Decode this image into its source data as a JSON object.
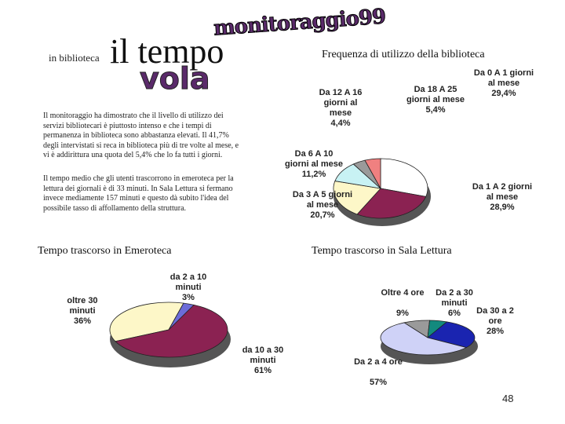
{
  "header": {
    "logo": "monitoraggio99",
    "kicker": "in biblioteca",
    "title": "il tempo",
    "title_accent": "vola"
  },
  "paragraphs": [
    "Il monitoraggio ha dimostrato che il livello di utilizzo dei servizi bibliotecari è piuttosto intenso e che i tempi di permanenza in biblioteca sono abbastanza elevati. Il 41,7% degli intervistati si reca in biblioteca più di tre volte al mese, e vi è addirittura una quota del 5,4% che lo fa tutti i giorni.",
    "Il tempo medio che gli utenti trascorrono in emeroteca per la lettura dei giornali è di 33 minuti. In Sala Lettura si fermano invece mediamente 157 minuti e questo dà subito l'idea del possibile tasso di affollamento della struttura."
  ],
  "page_number": "48",
  "chart_data": [
    {
      "type": "pie",
      "title": "Frequenza di utilizzo della biblioteca",
      "categories": [
        "Da 0 A 1 giorni al mese",
        "Da 1 A 2 giorni al mese",
        "Da 3 A 5 giorni al mese",
        "Da 6 A 10 giorni al mese",
        "Da 12 A 16 giorni al mese",
        "Da 18 A 25 giorni al mese"
      ],
      "values": [
        29.4,
        28.9,
        20.7,
        11.2,
        4.4,
        5.4
      ],
      "value_labels": [
        "29,4%",
        "28,9%",
        "20,7%",
        "11,2%",
        "4,4%",
        "5,4%"
      ],
      "colors": [
        "#ffffff",
        "#8b2252",
        "#fdf7c8",
        "#c8f2f4",
        "#9a9a9a",
        "#f08080"
      ]
    },
    {
      "type": "pie",
      "title": "Tempo trascorso in Emeroteca",
      "categories": [
        "oltre 30 minuti",
        "da 2 a 10 minuti",
        "da 10 a 30 minuti"
      ],
      "values": [
        36,
        3,
        61
      ],
      "value_labels": [
        "36%",
        "3%",
        "61%"
      ],
      "colors": [
        "#fdf7c8",
        "#6c6cd8",
        "#8b2252"
      ]
    },
    {
      "type": "pie",
      "title": "Tempo trascorso in Sala Lettura",
      "categories": [
        "Oltre 4 ore",
        "Da 2 a 30 minuti",
        "Da 30 a 2 ore",
        "Da 2 a 4 ore"
      ],
      "values": [
        9,
        6,
        28,
        57
      ],
      "value_labels": [
        "9%",
        "6%",
        "28%",
        "57%"
      ],
      "colors": [
        "#9a9a9a",
        "#138a7e",
        "#1a24b0",
        "#cfd2f7"
      ]
    }
  ]
}
